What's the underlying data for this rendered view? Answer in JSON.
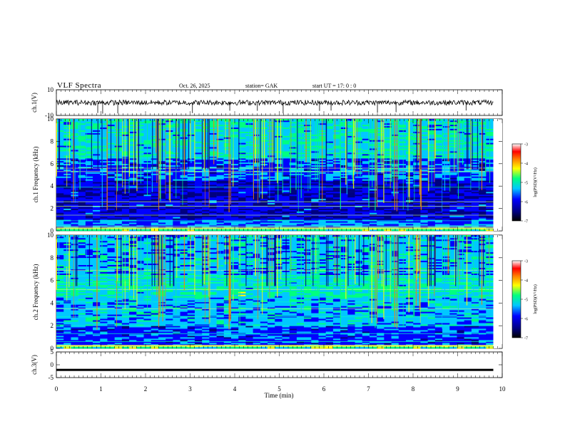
{
  "header": {
    "title": "VLF Spectra",
    "date": "Oct. 26, 2025",
    "station": "station= GAK",
    "start": "start UT = 17: 0 : 0"
  },
  "colors": {
    "trace": "#000000",
    "colormap": [
      "#000080",
      "#0000ff",
      "#00c8ff",
      "#00ff80",
      "#ffff00",
      "#ff8000",
      "#ff0000",
      "#ffffff"
    ]
  },
  "chart_data": [
    {
      "type": "line",
      "panel": "ch1-waveform",
      "ylabel": "ch.1(V)",
      "ylim": [
        -10,
        10
      ],
      "yticks": [
        "10",
        "-10"
      ],
      "xlim": [
        0,
        10
      ],
      "series": [
        {
          "x": [
            0,
            9.8
          ],
          "y": [
            0,
            0
          ]
        }
      ]
    },
    {
      "type": "heatmap",
      "panel": "ch1-spectrogram",
      "ylabel": "ch.1 Frequency (kHz)",
      "ylim": [
        0,
        10
      ],
      "yticks": [
        "0",
        "2",
        "4",
        "6",
        "8",
        "10"
      ],
      "xlim": [
        0,
        10
      ],
      "colorbar": {
        "label": "log(PSD)(V²/Hz)",
        "range": [
          -7,
          -3
        ],
        "ticks": [
          "-3",
          "-4",
          "-5",
          "-6",
          "-7"
        ]
      }
    },
    {
      "type": "heatmap",
      "panel": "ch2-spectrogram",
      "ylabel": "ch.2 Frequency (kHz)",
      "ylim": [
        0,
        10
      ],
      "yticks": [
        "0",
        "2",
        "4",
        "6",
        "8",
        "10"
      ],
      "xlim": [
        0,
        10
      ],
      "colorbar": {
        "label": "log(PSD)(V²/Hz)",
        "range": [
          -7,
          -3
        ],
        "ticks": [
          "-3",
          "-4",
          "-5",
          "-6",
          "-7"
        ]
      }
    },
    {
      "type": "line",
      "panel": "ch3-waveform",
      "ylabel": "ch.3(V)",
      "ylim": [
        -5,
        5
      ],
      "yticks": [
        "5",
        "0",
        "-5"
      ],
      "xlim": [
        0,
        10
      ],
      "series": [
        {
          "x": [
            0,
            9.8
          ],
          "y": [
            -2,
            -2
          ]
        }
      ]
    }
  ],
  "xaxis": {
    "label": "Time (min)",
    "ticks": [
      "0",
      "1",
      "2",
      "3",
      "4",
      "5",
      "6",
      "7",
      "8",
      "9",
      "10"
    ]
  }
}
